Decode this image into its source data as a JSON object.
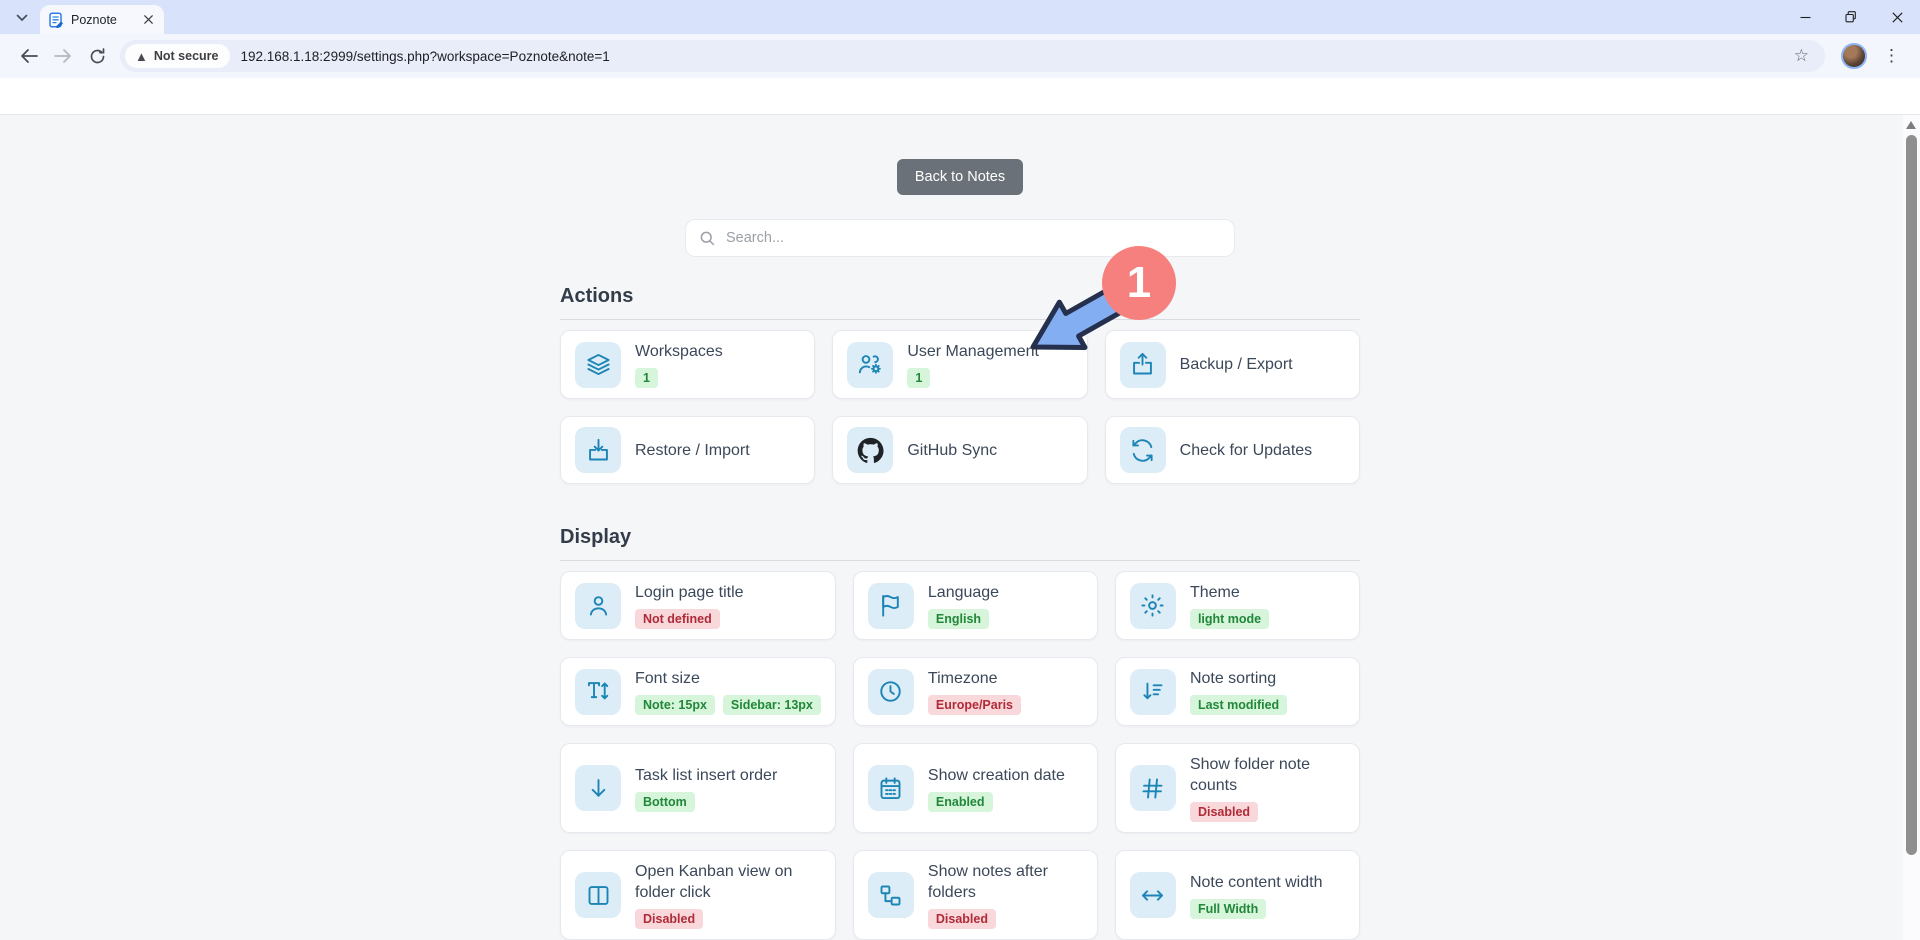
{
  "browser": {
    "tab": {
      "title": "Poznote"
    },
    "address": {
      "security": "Not secure",
      "url": "192.168.1.18:2999/settings.php?workspace=Poznote&note=1"
    }
  },
  "page": {
    "back_button": "Back to Notes",
    "search_placeholder": "Search...",
    "annotation_number": "1",
    "sections": [
      {
        "title": "Actions",
        "cards": [
          {
            "label": "Workspaces",
            "icon": "layers-icon",
            "badges": [
              {
                "text": "1",
                "tone": "green"
              }
            ]
          },
          {
            "label": "User Management",
            "icon": "users-gear-icon",
            "badges": [
              {
                "text": "1",
                "tone": "green"
              }
            ]
          },
          {
            "label": "Backup / Export",
            "icon": "box-arrow-up-icon",
            "badges": []
          },
          {
            "label": "Restore / Import",
            "icon": "box-arrow-down-icon",
            "badges": []
          },
          {
            "label": "GitHub Sync",
            "icon": "github-icon",
            "badges": []
          },
          {
            "label": "Check for Updates",
            "icon": "arrows-rotate-icon",
            "badges": []
          }
        ]
      },
      {
        "title": "Display",
        "cards": [
          {
            "label": "Login page title",
            "icon": "person-icon",
            "badges": [
              {
                "text": "Not defined",
                "tone": "red"
              }
            ]
          },
          {
            "label": "Language",
            "icon": "flag-icon",
            "badges": [
              {
                "text": "English",
                "tone": "green"
              }
            ]
          },
          {
            "label": "Theme",
            "icon": "gear-icon",
            "badges": [
              {
                "text": "light mode",
                "tone": "green"
              }
            ]
          },
          {
            "label": "Font size",
            "icon": "text-height-icon",
            "badges": [
              {
                "text": "Note: 15px",
                "tone": "green"
              },
              {
                "text": "Sidebar: 13px",
                "tone": "green"
              }
            ]
          },
          {
            "label": "Timezone",
            "icon": "clock-icon",
            "badges": [
              {
                "text": "Europe/Paris",
                "tone": "red"
              }
            ]
          },
          {
            "label": "Note sorting",
            "icon": "sort-down-icon",
            "badges": [
              {
                "text": "Last modified",
                "tone": "green"
              }
            ]
          },
          {
            "label": "Task list insert order",
            "icon": "arrow-down-icon",
            "badges": [
              {
                "text": "Bottom",
                "tone": "green"
              }
            ]
          },
          {
            "label": "Show creation date",
            "icon": "calendar-icon",
            "badges": [
              {
                "text": "Enabled",
                "tone": "green"
              }
            ]
          },
          {
            "label": "Show folder note counts",
            "icon": "hash-icon",
            "badges": [
              {
                "text": "Disabled",
                "tone": "red"
              }
            ]
          },
          {
            "label": "Open Kanban view on folder click",
            "icon": "kanban-icon",
            "badges": [
              {
                "text": "Disabled",
                "tone": "red"
              }
            ]
          },
          {
            "label": "Show notes after folders",
            "icon": "tree-icon",
            "badges": [
              {
                "text": "Disabled",
                "tone": "red"
              }
            ]
          },
          {
            "label": "Note content width",
            "icon": "arrows-horizontal-icon",
            "badges": [
              {
                "text": "Full Width",
                "tone": "green"
              }
            ]
          }
        ]
      }
    ]
  },
  "colors": {
    "icon_accent": "#1d85b5",
    "icon_tile_bg": "#dcedf7",
    "badge_green_bg": "#d6f5db",
    "badge_green_text": "#218739",
    "badge_red_bg": "#f8d8db",
    "badge_red_text": "#b02a37",
    "annotation_circle": "#f5807d",
    "annotation_arrow_fill": "#84aef2",
    "annotation_arrow_stroke": "#25304e",
    "back_button_bg": "#6a7178"
  }
}
